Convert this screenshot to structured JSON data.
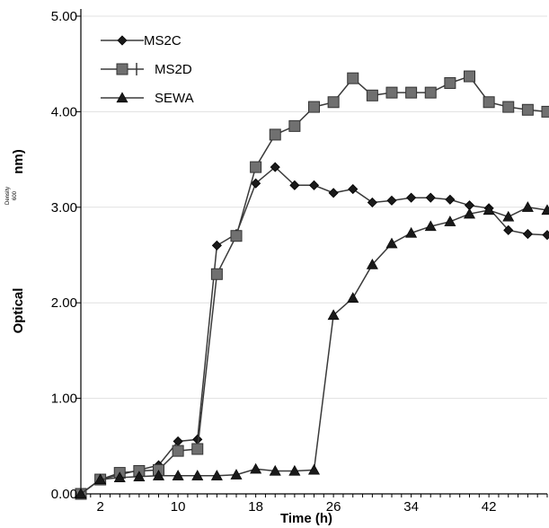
{
  "chart_data": {
    "type": "line",
    "title": "",
    "xlabel": "Time (h)",
    "ylabel_parts": {
      "main": "Optical",
      "small_top": "Density",
      "small_bottom": "600",
      "unit": "nm)"
    },
    "xlim": [
      0,
      48
    ],
    "ylim": [
      0,
      5
    ],
    "x_ticks": [
      2,
      10,
      18,
      26,
      34,
      42
    ],
    "y_ticks": [
      "0.00",
      "1.00",
      "2.00",
      "3.00",
      "4.00",
      "5.00"
    ],
    "y_tick_values": [
      0,
      1,
      2,
      3,
      4,
      5
    ],
    "legend_position": "top-left",
    "series": [
      {
        "name": "MS2C",
        "marker": "diamond",
        "color": "#1a1a1a",
        "x": [
          0,
          2,
          4,
          6,
          8,
          10,
          12,
          14,
          16,
          18,
          20,
          22,
          24,
          26,
          28,
          30,
          32,
          34,
          36,
          38,
          40,
          42,
          44,
          46,
          48
        ],
        "y": [
          0.0,
          0.15,
          0.2,
          0.25,
          0.3,
          0.55,
          0.57,
          2.6,
          2.72,
          3.25,
          3.42,
          3.23,
          3.23,
          3.15,
          3.19,
          3.05,
          3.07,
          3.1,
          3.1,
          3.08,
          3.02,
          2.99,
          2.76,
          2.72,
          2.71
        ]
      },
      {
        "name": "MS2D",
        "marker": "square",
        "color": "#707070",
        "x": [
          0,
          2,
          4,
          6,
          8,
          10,
          12,
          14,
          16,
          18,
          20,
          22,
          24,
          26,
          28,
          30,
          32,
          34,
          36,
          38,
          40,
          42,
          44,
          46,
          48
        ],
        "y": [
          0.0,
          0.15,
          0.22,
          0.24,
          0.25,
          0.45,
          0.47,
          2.3,
          2.7,
          3.42,
          3.76,
          3.85,
          4.05,
          4.1,
          4.35,
          4.17,
          4.2,
          4.2,
          4.2,
          4.3,
          4.37,
          4.1,
          4.05,
          4.02,
          4.0
        ]
      },
      {
        "name": "SEWA",
        "marker": "triangle",
        "color": "#1a1a1a",
        "x": [
          0,
          2,
          4,
          6,
          8,
          10,
          12,
          14,
          16,
          18,
          20,
          22,
          24,
          26,
          28,
          30,
          32,
          34,
          36,
          38,
          40,
          42,
          44,
          46,
          48
        ],
        "y": [
          0.0,
          0.15,
          0.17,
          0.18,
          0.19,
          0.19,
          0.19,
          0.19,
          0.2,
          0.26,
          0.24,
          0.24,
          0.25,
          1.87,
          2.05,
          2.4,
          2.62,
          2.73,
          2.8,
          2.85,
          2.93,
          2.97,
          2.9,
          3.0,
          2.97
        ]
      }
    ]
  }
}
